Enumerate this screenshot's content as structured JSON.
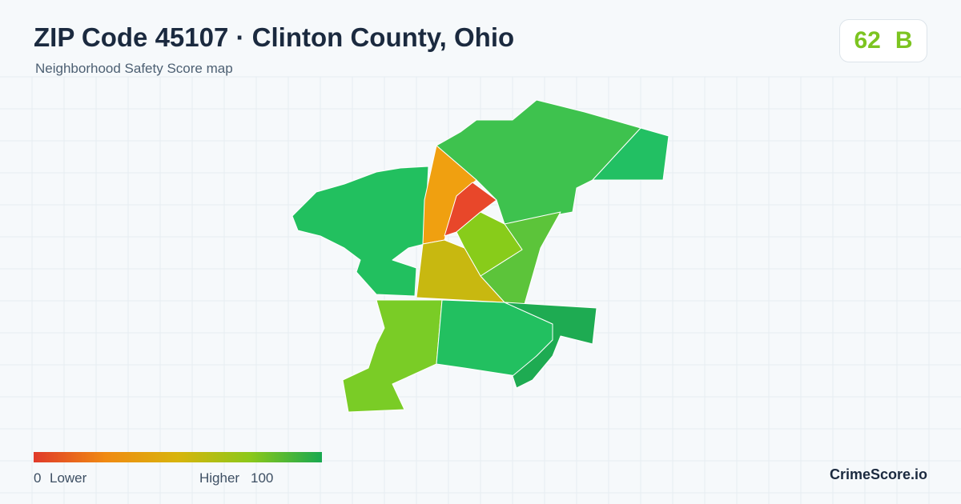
{
  "header": {
    "title": "ZIP Code 45107 · Clinton County, Ohio",
    "subtitle": "Neighborhood Safety Score map"
  },
  "score": {
    "value": "62",
    "grade": "B"
  },
  "legend": {
    "min": "0",
    "min_label": "Lower",
    "max_label": "Higher",
    "max": "100"
  },
  "brand": "CrimeScore.io"
}
